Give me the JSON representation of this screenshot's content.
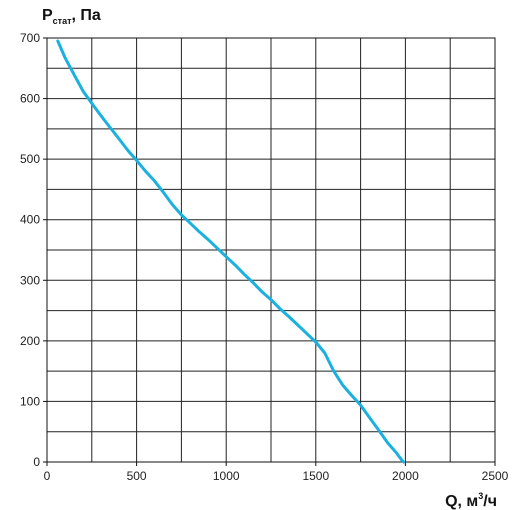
{
  "chart_data": {
    "type": "line",
    "ylabel": {
      "main": "P",
      "sub": "стат",
      "suffix": ", Па"
    },
    "xlabel": {
      "main": "Q, м",
      "sup": "3",
      "suffix": "/ч"
    },
    "xlim": [
      0,
      2500
    ],
    "ylim": [
      0,
      700
    ],
    "x_ticks": [
      0,
      500,
      1000,
      1500,
      2000,
      2500
    ],
    "x_tick_labels": [
      "0",
      "500",
      "1000",
      "1500",
      "2000",
      "2500"
    ],
    "y_ticks": [
      0,
      100,
      200,
      300,
      400,
      500,
      600,
      700
    ],
    "y_tick_labels": [
      "0",
      "100",
      "200",
      "300",
      "400",
      "500",
      "600",
      "700"
    ],
    "grid": true,
    "grid_x_step": 250,
    "grid_y_step": 50,
    "series": [
      {
        "color": "#1ab0e0",
        "points": [
          [
            60,
            695
          ],
          [
            100,
            668
          ],
          [
            150,
            640
          ],
          [
            200,
            613
          ],
          [
            250,
            592
          ],
          [
            300,
            572
          ],
          [
            350,
            553
          ],
          [
            400,
            534
          ],
          [
            450,
            515
          ],
          [
            500,
            498
          ],
          [
            550,
            480
          ],
          [
            600,
            464
          ],
          [
            650,
            445
          ],
          [
            700,
            425
          ],
          [
            750,
            408
          ],
          [
            800,
            394
          ],
          [
            850,
            380
          ],
          [
            900,
            367
          ],
          [
            950,
            353
          ],
          [
            1000,
            339
          ],
          [
            1050,
            325
          ],
          [
            1100,
            310
          ],
          [
            1150,
            296
          ],
          [
            1200,
            281
          ],
          [
            1250,
            268
          ],
          [
            1300,
            253
          ],
          [
            1350,
            240
          ],
          [
            1400,
            226
          ],
          [
            1450,
            212
          ],
          [
            1500,
            198
          ],
          [
            1550,
            180
          ],
          [
            1600,
            150
          ],
          [
            1650,
            127
          ],
          [
            1700,
            110
          ],
          [
            1750,
            94
          ],
          [
            1800,
            73
          ],
          [
            1850,
            53
          ],
          [
            1900,
            32
          ],
          [
            1950,
            15
          ],
          [
            1975,
            5
          ],
          [
            1990,
            0
          ]
        ]
      }
    ]
  }
}
